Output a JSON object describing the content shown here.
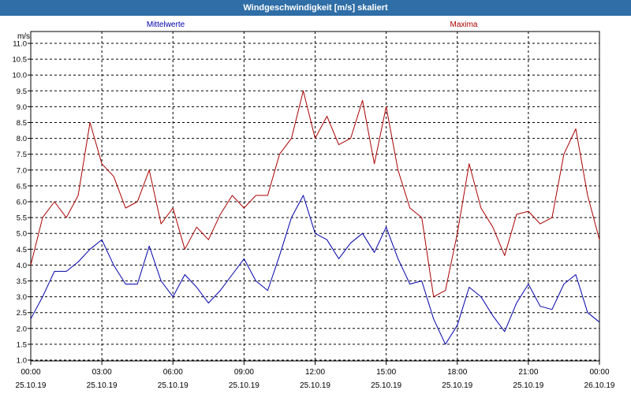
{
  "window": {
    "title": "Windgeschwindigkeit [m/s] skaliert"
  },
  "chart_data": {
    "type": "line",
    "title": "Windgeschwindigkeit [m/s] skaliert",
    "ylabel": "m/s",
    "ylim": [
      1.0,
      11.0
    ],
    "yticks": [
      "1.0",
      "1.5",
      "2.0",
      "2.5",
      "3.0",
      "3.5",
      "4.0",
      "4.5",
      "5.0",
      "5.5",
      "6.0",
      "6.5",
      "7.0",
      "7.5",
      "8.0",
      "8.5",
      "9.0",
      "9.5",
      "10.0",
      "10.5",
      "11.0"
    ],
    "xlim_hours": [
      0,
      24
    ],
    "x_ticks": [
      {
        "time": "00:00",
        "date": "25.10.19"
      },
      {
        "time": "03:00",
        "date": "25.10.19"
      },
      {
        "time": "06:00",
        "date": "25.10.19"
      },
      {
        "time": "09:00",
        "date": "25.10.19"
      },
      {
        "time": "12:00",
        "date": "25.10.19"
      },
      {
        "time": "15:00",
        "date": "25.10.19"
      },
      {
        "time": "18:00",
        "date": "25.10.19"
      },
      {
        "time": "21:00",
        "date": "25.10.19"
      },
      {
        "time": "00:00",
        "date": "26.10.19"
      }
    ],
    "grid": true,
    "series": [
      {
        "name": "Mittelwerte",
        "color": "#0000aa",
        "x": [
          0,
          0.5,
          1,
          1.5,
          2,
          2.5,
          3,
          3.5,
          4,
          4.5,
          5,
          5.5,
          6,
          6.5,
          7,
          7.5,
          8,
          8.5,
          9,
          9.5,
          10,
          10.5,
          11,
          11.5,
          12,
          12.5,
          13,
          13.5,
          14,
          14.5,
          15,
          15.5,
          16,
          16.5,
          17,
          17.5,
          18,
          18.5,
          19,
          19.5,
          20,
          20.5,
          21,
          21.5,
          22,
          22.5,
          23,
          23.5,
          24
        ],
        "values": [
          2.3,
          3.0,
          3.8,
          3.8,
          4.1,
          4.5,
          4.8,
          4.0,
          3.4,
          3.4,
          4.6,
          3.5,
          3.0,
          3.7,
          3.3,
          2.8,
          3.2,
          3.7,
          4.2,
          3.5,
          3.2,
          4.3,
          5.5,
          6.2,
          5.0,
          4.8,
          4.2,
          4.7,
          5.0,
          4.4,
          5.2,
          4.2,
          3.4,
          3.5,
          2.3,
          1.5,
          2.1,
          3.3,
          3.0,
          2.4,
          1.9,
          2.8,
          3.4,
          2.7,
          2.6,
          3.4,
          3.7,
          2.5,
          2.2
        ]
      },
      {
        "name": "Maxima",
        "color": "#aa0000",
        "x": [
          0,
          0.5,
          1,
          1.5,
          2,
          2.5,
          3,
          3.5,
          4,
          4.5,
          5,
          5.5,
          6,
          6.5,
          7,
          7.5,
          8,
          8.5,
          9,
          9.5,
          10,
          10.5,
          11,
          11.5,
          12,
          12.5,
          13,
          13.5,
          14,
          14.5,
          15,
          15.5,
          16,
          16.5,
          17,
          17.5,
          18,
          18.5,
          19,
          19.5,
          20,
          20.5,
          21,
          21.5,
          22,
          22.5,
          23,
          23.5,
          24
        ],
        "values": [
          4.0,
          5.5,
          6.0,
          5.5,
          6.2,
          8.5,
          7.2,
          6.8,
          5.8,
          6.0,
          7.0,
          5.3,
          5.8,
          4.5,
          5.2,
          4.8,
          5.6,
          6.2,
          5.8,
          6.2,
          6.2,
          7.5,
          8.0,
          9.5,
          8.0,
          8.7,
          7.8,
          8.0,
          9.2,
          7.2,
          9.0,
          7.0,
          5.8,
          5.5,
          3.0,
          3.2,
          5.0,
          7.2,
          5.8,
          5.2,
          4.3,
          5.6,
          5.7,
          5.3,
          5.5,
          7.5,
          8.3,
          6.2,
          4.8
        ]
      }
    ]
  }
}
